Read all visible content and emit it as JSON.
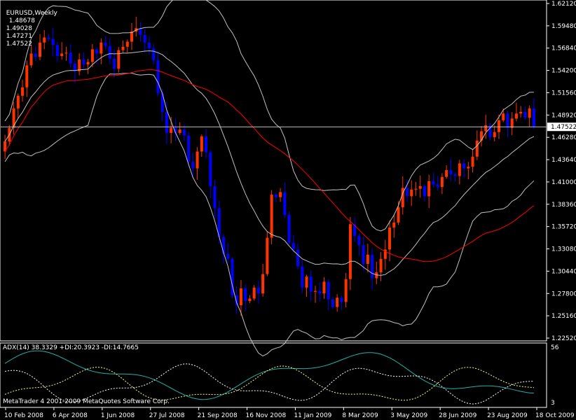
{
  "header": {
    "symbol_label": "EURUSD,Weekly",
    "ohlc": [
      "1.48678",
      "1.49028",
      "1.47271",
      "1.47522"
    ]
  },
  "indicator": {
    "label": "ADX(14) 38.3329 +DI:20.3923 -DI:14.7665",
    "scale_top": "56",
    "scale_bottom": "3"
  },
  "copyright": "MetaTrader 4 2001-2009 MetaQuotes Software Corp.",
  "colors": {
    "background": "#000000",
    "frame": "#ffffff",
    "bull_candle": "#ff3300",
    "bear_candle": "#0000ff",
    "bollinger": "#c0c0c0",
    "moving_average": "#ff0000",
    "adx_line": "#20b2aa",
    "plus_di": "#ffffff",
    "minus_di": "#ffff80",
    "price_line": "#c0c0c0",
    "price_tag_bg": "#ffffff",
    "price_tag_text": "#000000"
  },
  "chart_data": {
    "type": "candlestick",
    "symbol": "EURUSD",
    "timeframe": "Weekly",
    "y_ticks": [
      "1.62120",
      "1.59480",
      "1.56840",
      "1.54200",
      "1.51560",
      "1.48920",
      "1.46280",
      "1.43640",
      "1.41000",
      "1.38360",
      "1.35720",
      "1.33080",
      "1.30440",
      "1.27800",
      "1.25160",
      "1.22520"
    ],
    "ylim": [
      1.2252,
      1.6212
    ],
    "x_ticks": [
      "10 Feb 2008",
      "6 Apr 2008",
      "1 Jun 2008",
      "27 Jul 2008",
      "21 Sep 2008",
      "16 Nov 2008",
      "11 Jan 2009",
      "8 Mar 2009",
      "3 May 2009",
      "28 Jun 2009",
      "23 Aug 2009",
      "18 Oct 2009"
    ],
    "current_price": "1.47522",
    "close_series": [
      1.458,
      1.474,
      1.497,
      1.512,
      1.522,
      1.548,
      1.562,
      1.558,
      1.575,
      1.581,
      1.579,
      1.572,
      1.559,
      1.562,
      1.563,
      1.55,
      1.541,
      1.555,
      1.549,
      1.552,
      1.567,
      1.562,
      1.575,
      1.571,
      1.556,
      1.544,
      1.566,
      1.57,
      1.576,
      1.588,
      1.592,
      1.584,
      1.575,
      1.568,
      1.554,
      1.515,
      1.493,
      1.468,
      1.474,
      1.468,
      1.472,
      1.465,
      1.434,
      1.426,
      1.446,
      1.464,
      1.445,
      1.405,
      1.379,
      1.345,
      1.325,
      1.319,
      1.276,
      1.264,
      1.284,
      1.269,
      1.272,
      1.285,
      1.278,
      1.301,
      1.344,
      1.395,
      1.392,
      1.398,
      1.371,
      1.338,
      1.33,
      1.31,
      1.285,
      1.298,
      1.28,
      1.281,
      1.278,
      1.292,
      1.271,
      1.262,
      1.273,
      1.268,
      1.295,
      1.36,
      1.346,
      1.335,
      1.313,
      1.324,
      1.296,
      1.303,
      1.319,
      1.33,
      1.356,
      1.362,
      1.38,
      1.403,
      1.393,
      1.401,
      1.402,
      1.405,
      1.393,
      1.411,
      1.407,
      1.404,
      1.416,
      1.424,
      1.419,
      1.417,
      1.432,
      1.426,
      1.428,
      1.44,
      1.459,
      1.47,
      1.477,
      1.463,
      1.469,
      1.483,
      1.491,
      1.474,
      1.485,
      1.491,
      1.493,
      1.486,
      1.497,
      1.475
    ],
    "adx_scale": [
      3,
      56
    ],
    "adx_values": [
      38.3329
    ],
    "plus_di_value": 20.3923,
    "minus_di_value": 14.7665
  }
}
